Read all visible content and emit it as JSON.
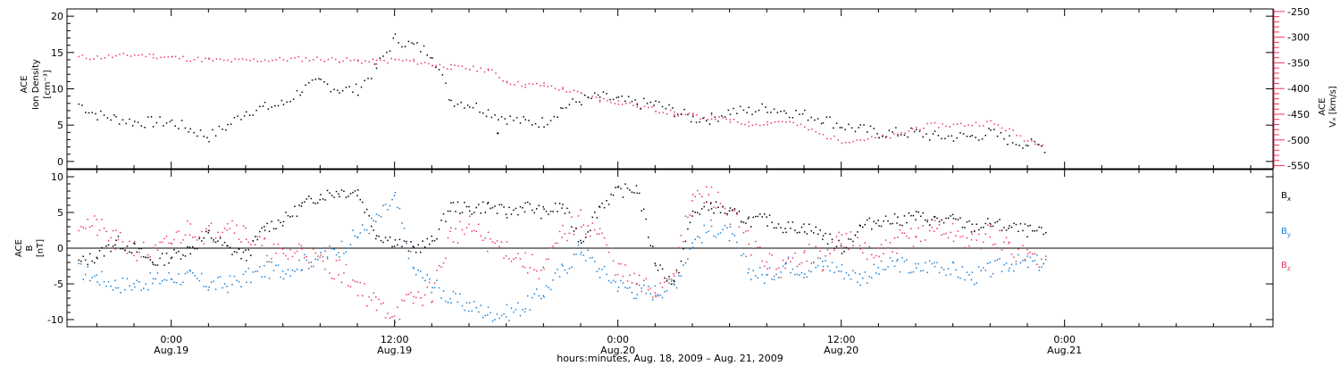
{
  "colors": {
    "black": "#000000",
    "red": "#e8385f",
    "blue": "#1a7fd4"
  },
  "xaxis": {
    "title": "hours:minutes, Aug. 18, 2009 – Aug. 21, 2009",
    "range_hours": [
      -5.6,
      59.2
    ],
    "ticks": [
      {
        "h": 0,
        "time": "0:00",
        "date": "Aug.19"
      },
      {
        "h": 12,
        "time": "12:00",
        "date": "Aug.19"
      },
      {
        "h": 24,
        "time": "0:00",
        "date": "Aug.20"
      },
      {
        "h": 36,
        "time": "12:00",
        "date": "Aug.20"
      },
      {
        "h": 48,
        "time": "0:00",
        "date": "Aug.21"
      }
    ]
  },
  "chart_data": [
    {
      "type": "scatter",
      "panel": "top",
      "x_units": "hours since Aug.19 0:00",
      "left_axis": {
        "label_lines": [
          "ACE",
          "Ion Density",
          "[cm⁻³]"
        ],
        "ylim": [
          -1,
          21
        ],
        "ticks": [
          "0",
          "5",
          "10",
          "15",
          "20"
        ]
      },
      "right_axis": {
        "label_lines": [
          "ACE",
          "Vₓ [km/s]"
        ],
        "ylim": [
          -556,
          -245
        ],
        "ticks": [
          "-250",
          "-300",
          "-350",
          "-400",
          "-450",
          "-500",
          "-550"
        ]
      },
      "series": [
        {
          "axis": "left",
          "color": "#000000",
          "x": [
            -5.0,
            -4.0,
            -3.0,
            -2.0,
            -1.0,
            0.0,
            1.0,
            2.0,
            3.0,
            4.0,
            5.0,
            6.0,
            7.0,
            8.0,
            9.0,
            10.0,
            11.0,
            12.0,
            13.0,
            14.0,
            15.0,
            16.0,
            17.0,
            18.0,
            19.0,
            20.0,
            21.0,
            22.0,
            23.0,
            24.0,
            25.0,
            26.0,
            27.0,
            28.0,
            29.0,
            30.0,
            31.0,
            32.0,
            33.0,
            34.0,
            35.0,
            36.0,
            37.0,
            38.0,
            39.0,
            40.0,
            41.0,
            42.0,
            43.0,
            44.0,
            45.0,
            46.0,
            47.0
          ],
          "y": [
            8,
            6.5,
            6,
            5.5,
            5.5,
            5.5,
            4.5,
            3.5,
            5,
            7,
            7.5,
            8,
            10,
            11,
            10,
            10,
            13,
            17,
            16,
            15,
            8.5,
            8,
            7,
            6,
            5.5,
            5.5,
            7.5,
            8.5,
            9,
            8.5,
            8,
            8,
            7,
            6,
            6,
            7,
            7,
            7.5,
            7,
            6.5,
            6,
            5,
            4.5,
            4,
            4,
            4,
            3.5,
            3.5,
            3.5,
            4,
            3,
            2.5,
            2
          ]
        },
        {
          "axis": "right",
          "color": "#e8385f",
          "x": [
            -5.0,
            -4.0,
            -3.0,
            -2.0,
            -1.0,
            0.0,
            1.0,
            2.0,
            3.0,
            4.0,
            5.0,
            6.0,
            7.0,
            8.0,
            9.0,
            10.0,
            11.0,
            12.0,
            13.0,
            14.0,
            15.0,
            16.0,
            17.0,
            18.0,
            19.0,
            20.0,
            21.0,
            22.0,
            23.0,
            24.0,
            25.0,
            26.0,
            27.0,
            28.0,
            29.0,
            30.0,
            31.0,
            32.0,
            33.0,
            34.0,
            35.0,
            36.0,
            37.0,
            38.0,
            39.0,
            40.0,
            41.0,
            42.0,
            43.0,
            44.0,
            45.0,
            46.0,
            47.0
          ],
          "y": [
            -338,
            -338,
            -336,
            -333,
            -335,
            -338,
            -341,
            -343,
            -345,
            -344,
            -343,
            -342,
            -341,
            -341,
            -343,
            -345,
            -347,
            -343,
            -346,
            -352,
            -357,
            -360,
            -362,
            -385,
            -392,
            -392,
            -400,
            -410,
            -420,
            -425,
            -432,
            -440,
            -447,
            -452,
            -455,
            -462,
            -468,
            -465,
            -462,
            -475,
            -490,
            -500,
            -498,
            -495,
            -490,
            -475,
            -470,
            -470,
            -468,
            -465,
            -480,
            -500,
            -505
          ]
        },
        {
          "axis": "left",
          "color": "#000000",
          "note": "outlier",
          "x": [
            17.5
          ],
          "y": [
            4
          ]
        }
      ]
    },
    {
      "type": "scatter",
      "panel": "bottom",
      "x_units": "hours since Aug.19 0:00",
      "left_axis": {
        "label_lines": [
          "ACE",
          "B",
          "[nT]"
        ],
        "ylim": [
          -11,
          11
        ],
        "ticks": [
          "-10",
          "-5",
          "0",
          "5",
          "10"
        ]
      },
      "zero_line": true,
      "legend": {
        "placement": "right",
        "entries": [
          {
            "text": "B",
            "sub": "x",
            "color": "#000000"
          },
          {
            "text": "B",
            "sub": "y",
            "color": "#1a7fd4"
          },
          {
            "text": "B",
            "sub": "z",
            "color": "#e8385f"
          }
        ]
      },
      "series": [
        {
          "name": "Bx",
          "color": "#000000",
          "x": [
            -5.0,
            -4.0,
            -3.0,
            -2.0,
            -1.0,
            0.0,
            1.0,
            2.0,
            3.0,
            4.0,
            5.0,
            6.0,
            7.0,
            8.0,
            9.0,
            10.0,
            11.0,
            12.0,
            13.0,
            14.0,
            15.0,
            16.0,
            17.0,
            18.0,
            19.0,
            20.0,
            21.0,
            22.0,
            23.0,
            24.0,
            25.0,
            26.0,
            27.0,
            28.0,
            29.0,
            30.0,
            31.0,
            32.0,
            33.0,
            34.0,
            35.0,
            36.0,
            37.0,
            38.0,
            39.0,
            40.0,
            41.0,
            42.0,
            43.0,
            44.0,
            45.0,
            46.0,
            47.0
          ],
          "y": [
            -2,
            -1,
            1,
            0,
            -2,
            -1,
            0,
            2,
            0,
            -1,
            3,
            4,
            6,
            7.5,
            8,
            8,
            2,
            1,
            0,
            1,
            6,
            5.5,
            6,
            5,
            6,
            5,
            6,
            1,
            6,
            8,
            8.5,
            -2,
            -5,
            5,
            6,
            5,
            4,
            4,
            3,
            3,
            2,
            0,
            3,
            4,
            4,
            4.5,
            4,
            4,
            3,
            3.5,
            3,
            2.5,
            2
          ]
        },
        {
          "name": "By",
          "color": "#1a7fd4",
          "x": [
            -5.0,
            -4.0,
            -3.0,
            -2.0,
            -1.0,
            0.0,
            1.0,
            2.0,
            3.0,
            4.0,
            5.0,
            6.0,
            7.0,
            8.0,
            9.0,
            10.0,
            11.0,
            12.0,
            13.0,
            14.0,
            15.0,
            16.0,
            17.0,
            18.0,
            19.0,
            20.0,
            21.0,
            22.0,
            23.0,
            24.0,
            25.0,
            26.0,
            27.0,
            28.0,
            29.0,
            30.0,
            31.0,
            32.0,
            33.0,
            34.0,
            35.0,
            36.0,
            37.0,
            38.0,
            39.0,
            40.0,
            41.0,
            42.0,
            43.0,
            44.0,
            45.0,
            46.0,
            47.0
          ],
          "y": [
            -3,
            -4,
            -5,
            -5,
            -4.5,
            -4,
            -4,
            -5,
            -5,
            -4,
            -3,
            -3,
            -2,
            -1,
            0,
            2,
            4,
            7,
            -3,
            -5,
            -7,
            -8,
            -9,
            -9,
            -8,
            -6,
            -3,
            0,
            -3,
            -5,
            -6,
            -6,
            -5,
            1,
            3,
            2,
            -3,
            -4,
            -2,
            -3,
            -2,
            -3,
            -4,
            -3,
            -2,
            -3,
            -2,
            -3,
            -4,
            -3,
            -2,
            -2,
            -2
          ]
        },
        {
          "name": "Bz",
          "color": "#e8385f",
          "x": [
            -5.0,
            -4.0,
            -3.0,
            -2.0,
            -1.0,
            0.0,
            1.0,
            2.0,
            3.0,
            4.0,
            5.0,
            6.0,
            7.0,
            8.0,
            9.0,
            10.0,
            11.0,
            12.0,
            13.0,
            14.0,
            15.0,
            16.0,
            17.0,
            18.0,
            19.0,
            20.0,
            21.0,
            22.0,
            23.0,
            24.0,
            25.0,
            26.0,
            27.0,
            28.0,
            29.0,
            30.0,
            31.0,
            32.0,
            33.0,
            34.0,
            35.0,
            36.0,
            37.0,
            38.0,
            39.0,
            40.0,
            41.0,
            42.0,
            43.0,
            44.0,
            45.0,
            46.0,
            47.0
          ],
          "y": [
            4,
            3,
            1,
            0,
            -1,
            1,
            3,
            2,
            4,
            2,
            0,
            -1,
            0,
            -2,
            -3,
            -5,
            -8,
            -9,
            -7,
            -6,
            2,
            3,
            1,
            0,
            -2,
            -3,
            2,
            4,
            2,
            -3,
            -5,
            -6,
            -3,
            7,
            7.5,
            5,
            1,
            -2,
            -3,
            0,
            -2,
            2,
            0,
            -1,
            1,
            2,
            3,
            2,
            1,
            2,
            0,
            -1,
            -2
          ]
        }
      ]
    }
  ]
}
